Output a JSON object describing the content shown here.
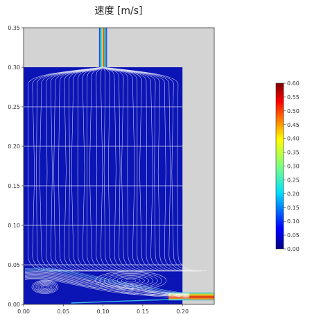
{
  "chart_data": {
    "type": "streamline",
    "title": "速度 [m/s]",
    "xlabel": "",
    "ylabel": "",
    "xlim": [
      0.0,
      0.24
    ],
    "ylim": [
      0.0,
      0.35
    ],
    "x_ticks": [
      "0.00",
      "0.05",
      "0.10",
      "0.15",
      "0.20"
    ],
    "y_ticks": [
      "0.00",
      "0.05",
      "0.10",
      "0.15",
      "0.20",
      "0.25",
      "0.30",
      "0.35"
    ],
    "colorbar": {
      "min": 0.0,
      "max": 0.6,
      "ticks": [
        "0.00",
        "0.05",
        "0.10",
        "0.15",
        "0.20",
        "0.25",
        "0.30",
        "0.35",
        "0.40",
        "0.45",
        "0.50",
        "0.55",
        "0.60"
      ],
      "colormap": "jet"
    },
    "geometry": {
      "tank": {
        "x": [
          0.0,
          0.2
        ],
        "y": [
          0.0,
          0.3
        ]
      },
      "inlet": {
        "x": [
          0.095,
          0.105
        ],
        "y": [
          0.3,
          0.35
        ]
      },
      "outlet": {
        "x": [
          0.2,
          0.24
        ],
        "y": [
          0.005,
          0.015
        ]
      }
    },
    "colors": {
      "flow_background": "#0b14b4",
      "solid_region": "#d3d3d3",
      "streamline": "#ffffff"
    }
  }
}
